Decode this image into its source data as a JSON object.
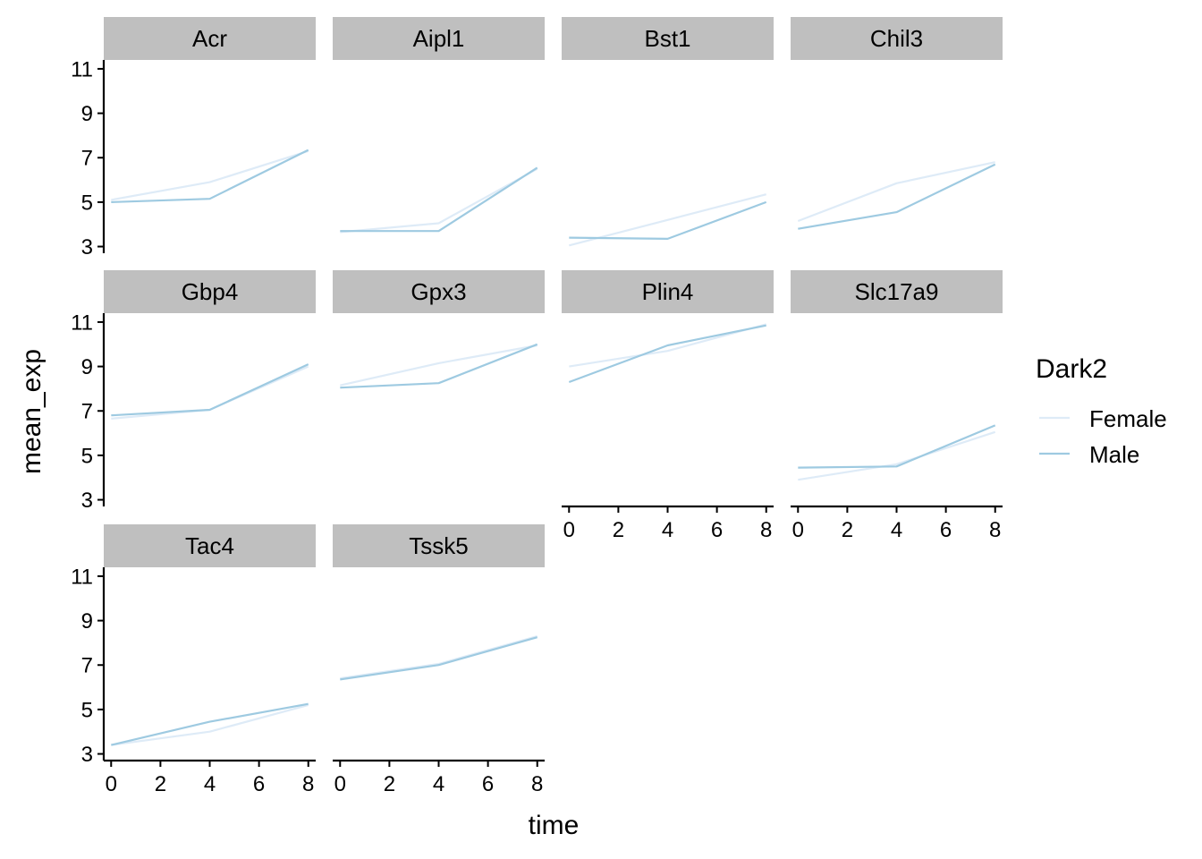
{
  "chart_data": {
    "type": "line",
    "xlabel": "time",
    "ylabel": "mean_exp",
    "x": [
      0,
      4,
      8
    ],
    "xticks": [
      0,
      2,
      4,
      6,
      8
    ],
    "xlim": [
      -0.3,
      8.3
    ],
    "yticks": [
      3,
      5,
      7,
      9,
      11
    ],
    "ylim": [
      2.7,
      11.4
    ],
    "grid": false,
    "legend": {
      "title": "Dark2",
      "position": "right",
      "entries": [
        {
          "name": "Female",
          "color": "#DEEBF7"
        },
        {
          "name": "Male",
          "color": "#9ECAE1"
        }
      ]
    },
    "panels": [
      {
        "name": "Acr",
        "series": [
          {
            "name": "Female",
            "values": [
              5.1,
              5.9,
              7.3
            ]
          },
          {
            "name": "Male",
            "values": [
              5.0,
              5.15,
              7.35
            ]
          }
        ]
      },
      {
        "name": "Aipl1",
        "series": [
          {
            "name": "Female",
            "values": [
              3.65,
              4.05,
              6.5
            ]
          },
          {
            "name": "Male",
            "values": [
              3.7,
              3.7,
              6.55
            ]
          }
        ]
      },
      {
        "name": "Bst1",
        "series": [
          {
            "name": "Female",
            "values": [
              3.05,
              4.2,
              5.35
            ]
          },
          {
            "name": "Male",
            "values": [
              3.4,
              3.35,
              5.0
            ]
          }
        ]
      },
      {
        "name": "Chil3",
        "series": [
          {
            "name": "Female",
            "values": [
              4.15,
              5.85,
              6.8
            ]
          },
          {
            "name": "Male",
            "values": [
              3.8,
              4.55,
              6.7
            ]
          }
        ]
      },
      {
        "name": "Gbp4",
        "series": [
          {
            "name": "Female",
            "values": [
              6.65,
              7.05,
              9.0
            ]
          },
          {
            "name": "Male",
            "values": [
              6.8,
              7.05,
              9.1
            ]
          }
        ]
      },
      {
        "name": "Gpx3",
        "series": [
          {
            "name": "Female",
            "values": [
              8.15,
              9.15,
              9.95
            ]
          },
          {
            "name": "Male",
            "values": [
              8.05,
              8.25,
              10.0
            ]
          }
        ]
      },
      {
        "name": "Plin4",
        "series": [
          {
            "name": "Female",
            "values": [
              9.0,
              9.7,
              10.9
            ]
          },
          {
            "name": "Male",
            "values": [
              8.3,
              9.95,
              10.85
            ]
          }
        ]
      },
      {
        "name": "Slc17a9",
        "series": [
          {
            "name": "Female",
            "values": [
              3.9,
              4.6,
              6.05
            ]
          },
          {
            "name": "Male",
            "values": [
              4.45,
              4.5,
              6.35
            ]
          }
        ]
      },
      {
        "name": "Tac4",
        "series": [
          {
            "name": "Female",
            "values": [
              3.4,
              4.0,
              5.2
            ]
          },
          {
            "name": "Male",
            "values": [
              3.4,
              4.45,
              5.25
            ]
          }
        ]
      },
      {
        "name": "Tssk5",
        "series": [
          {
            "name": "Female",
            "values": [
              6.4,
              7.05,
              8.3
            ]
          },
          {
            "name": "Male",
            "values": [
              6.35,
              7.0,
              8.25
            ]
          }
        ]
      }
    ]
  }
}
